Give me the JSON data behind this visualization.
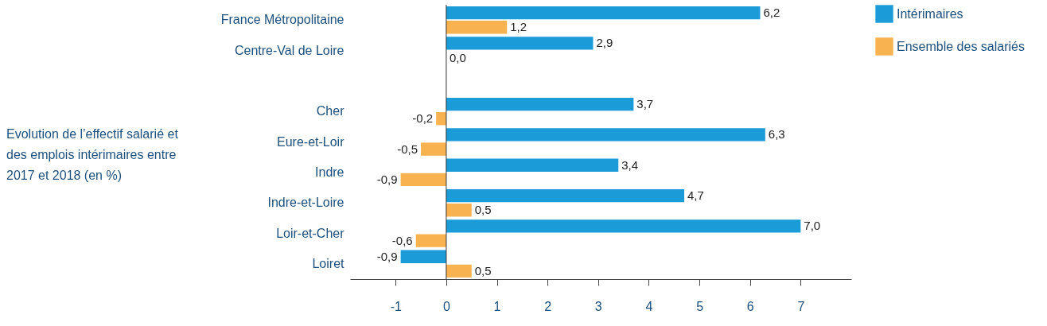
{
  "chart_data": {
    "type": "bar",
    "orientation": "horizontal",
    "categories": [
      "France Métropolitaine",
      "Centre-Val de Loire",
      null,
      "Cher",
      "Eure-et-Loir",
      "Indre",
      "Indre-et-Loire",
      "Loir-et-Cher",
      "Loiret"
    ],
    "series": [
      {
        "name": "Intérimaires",
        "color": "#1b9bd7",
        "values": [
          6.2,
          2.9,
          null,
          3.7,
          6.3,
          3.4,
          4.7,
          7.0,
          -0.9
        ],
        "value_labels": [
          "6,2",
          "2,9",
          null,
          "3,7",
          "6,3",
          "3,4",
          "4,7",
          "7,0",
          "-0,9"
        ]
      },
      {
        "name": "Ensemble des salariés",
        "color": "#f8b24f",
        "values": [
          1.2,
          0.0,
          null,
          -0.2,
          -0.5,
          -0.9,
          0.5,
          -0.6,
          0.5
        ],
        "value_labels": [
          "1,2",
          "0,0",
          null,
          "-0,2",
          "-0,5",
          "-0,9",
          "0,5",
          "-0,6",
          "0,5"
        ]
      }
    ],
    "xlim": [
      -1.9,
      8
    ],
    "xticks": [
      -1,
      0,
      1,
      2,
      3,
      4,
      5,
      6,
      7
    ],
    "legend": "right",
    "annotations": [
      "Evolution  de l’effectif salarié et\ndes emplois intérimaires entre\n2017 et 2018 (en %)"
    ]
  }
}
